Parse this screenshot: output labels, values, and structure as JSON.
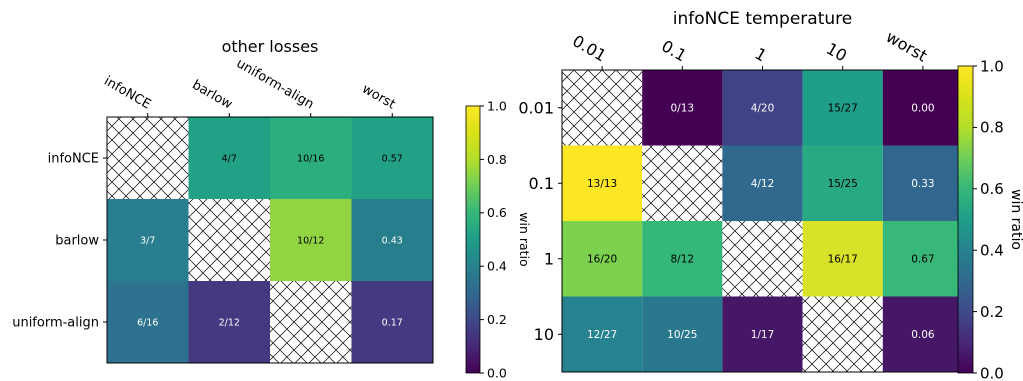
{
  "chart_data": [
    {
      "type": "heatmap",
      "title": "other losses",
      "x_categories": [
        "infoNCE",
        "barlow",
        "uniform-align",
        "worst"
      ],
      "y_categories": [
        "infoNCE",
        "barlow",
        "uniform-align"
      ],
      "cells": [
        [
          {
            "label": "",
            "value": null
          },
          {
            "label": "4/7",
            "value": 0.571
          },
          {
            "label": "10/16",
            "value": 0.625
          },
          {
            "label": "0.57",
            "value": 0.57
          }
        ],
        [
          {
            "label": "3/7",
            "value": 0.429
          },
          {
            "label": "",
            "value": null
          },
          {
            "label": "10/12",
            "value": 0.833
          },
          {
            "label": "0.43",
            "value": 0.43
          }
        ],
        [
          {
            "label": "6/16",
            "value": 0.375
          },
          {
            "label": "2/12",
            "value": 0.167
          },
          {
            "label": "",
            "value": null
          },
          {
            "label": "0.17",
            "value": 0.17
          }
        ]
      ],
      "colorbar": {
        "label": "win ratio",
        "ticks": [
          "0.0",
          "0.2",
          "0.4",
          "0.6",
          "0.8",
          "1.0"
        ],
        "range": [
          0,
          1
        ]
      },
      "colormap": "viridis",
      "hatched_cells": "diagonal"
    },
    {
      "type": "heatmap",
      "title": "infoNCE temperature",
      "x_categories": [
        "0.01",
        "0.1",
        "1",
        "10",
        "worst"
      ],
      "y_categories": [
        "0.01",
        "0.1",
        "1",
        "10"
      ],
      "cells": [
        [
          {
            "label": "",
            "value": null
          },
          {
            "label": "0/13",
            "value": 0.0
          },
          {
            "label": "4/20",
            "value": 0.2
          },
          {
            "label": "15/27",
            "value": 0.556
          },
          {
            "label": "0.00",
            "value": 0.0
          }
        ],
        [
          {
            "label": "13/13",
            "value": 1.0
          },
          {
            "label": "",
            "value": null
          },
          {
            "label": "4/12",
            "value": 0.333
          },
          {
            "label": "15/25",
            "value": 0.6
          },
          {
            "label": "0.33",
            "value": 0.33
          }
        ],
        [
          {
            "label": "16/20",
            "value": 0.8
          },
          {
            "label": "8/12",
            "value": 0.667
          },
          {
            "label": "",
            "value": null
          },
          {
            "label": "16/17",
            "value": 0.941
          },
          {
            "label": "0.67",
            "value": 0.67
          }
        ],
        [
          {
            "label": "12/27",
            "value": 0.444
          },
          {
            "label": "10/25",
            "value": 0.4
          },
          {
            "label": "1/17",
            "value": 0.059
          },
          {
            "label": "",
            "value": null
          },
          {
            "label": "0.06",
            "value": 0.06
          }
        ]
      ],
      "colorbar": {
        "label": "win ratio",
        "ticks": [
          "0.0",
          "0.2",
          "0.4",
          "0.6",
          "0.8",
          "1.0"
        ],
        "range": [
          0,
          1
        ]
      },
      "colormap": "viridis",
      "hatched_cells": "diagonal"
    }
  ]
}
